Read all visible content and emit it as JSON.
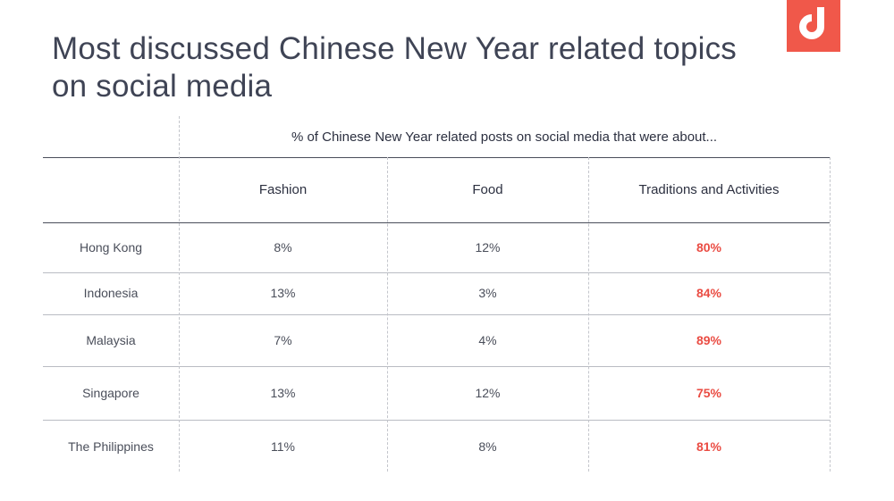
{
  "title": "Most discussed Chinese New Year related topics on social media",
  "brand_color": "#f0584a",
  "highlight_color": "#ea4c43",
  "logo_icon": "brand-logo-icon",
  "chart_data": {
    "type": "table",
    "subheader": "% of Chinese New Year related posts on social media that were about...",
    "columns": [
      "Fashion",
      "Food",
      "Traditions and Activities"
    ],
    "rows": [
      {
        "label": "Hong Kong",
        "values": [
          "8%",
          "12%",
          "80%"
        ]
      },
      {
        "label": "Indonesia",
        "values": [
          "13%",
          "3%",
          "84%"
        ]
      },
      {
        "label": "Malaysia",
        "values": [
          "7%",
          "4%",
          "89%"
        ]
      },
      {
        "label": "Singapore",
        "values": [
          "13%",
          "12%",
          "75%"
        ]
      },
      {
        "label": "The Philippines",
        "values": [
          "11%",
          "8%",
          "81%"
        ]
      }
    ],
    "highlighted_column": "Traditions and Activities"
  }
}
